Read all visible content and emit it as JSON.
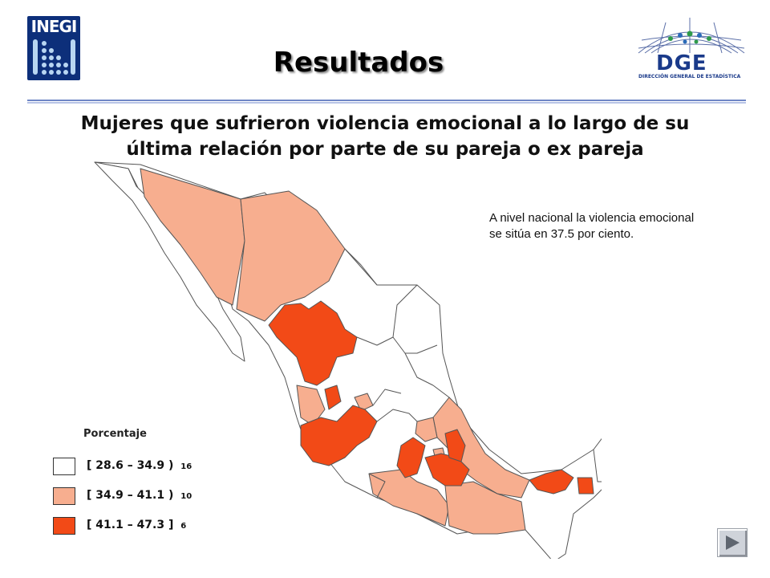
{
  "header": {
    "logo_left_text": "INEGI",
    "logo_right_acronym": "DGE",
    "logo_right_subtitle": "DIRECCIÓN GENERAL DE ESTADÍSTICA",
    "title": "Resultados"
  },
  "subtitle_line1": "Mujeres que sufrieron violencia emocional a lo largo de su",
  "subtitle_line2": "última relación por parte de su pareja o ex pareja",
  "note": "A nivel nacional la violencia emocional se sitúa en 37.5 por ciento.",
  "legend": {
    "title": "Porcentaje",
    "items": [
      {
        "label": "[ 28.6 – 34.9 )",
        "count": "16",
        "color": "#ffffff"
      },
      {
        "label": "[ 34.9 – 41.1 )",
        "count": "10",
        "color": "#f7ae8f"
      },
      {
        "label": "[ 41.1 – 47.3 ]",
        "count": "6",
        "color": "#f24a17"
      }
    ]
  },
  "colors": {
    "low": "#ffffff",
    "mid": "#f7ae8f",
    "high": "#f24a17",
    "border": "#555555",
    "brand": "#0d2f7a"
  },
  "nav": {
    "next_icon": "play-right-icon"
  }
}
